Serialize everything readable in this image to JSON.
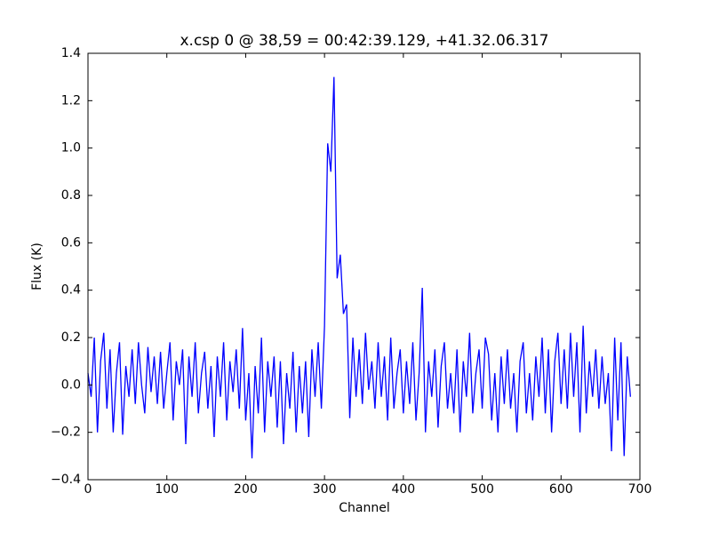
{
  "chart_data": {
    "type": "line",
    "title": "x.csp 0 @ 38,59 = 00:42:39.129, +41.32.06.317",
    "xlabel": "Channel",
    "ylabel": "Flux (K)",
    "x": [
      0,
      4,
      8,
      12,
      16,
      20,
      24,
      28,
      32,
      36,
      40,
      44,
      48,
      52,
      56,
      60,
      64,
      68,
      72,
      76,
      80,
      84,
      88,
      92,
      96,
      100,
      104,
      108,
      112,
      116,
      120,
      124,
      128,
      132,
      136,
      140,
      144,
      148,
      152,
      156,
      160,
      164,
      168,
      172,
      176,
      180,
      184,
      188,
      192,
      196,
      200,
      204,
      208,
      212,
      216,
      220,
      224,
      228,
      232,
      236,
      240,
      244,
      248,
      252,
      256,
      260,
      264,
      268,
      272,
      276,
      280,
      284,
      288,
      292,
      296,
      300,
      304,
      308,
      312,
      316,
      320,
      324,
      328,
      332,
      336,
      340,
      344,
      348,
      352,
      356,
      360,
      364,
      368,
      372,
      376,
      380,
      384,
      388,
      392,
      396,
      400,
      404,
      408,
      412,
      416,
      420,
      424,
      428,
      432,
      436,
      440,
      444,
      448,
      452,
      456,
      460,
      464,
      468,
      472,
      476,
      480,
      484,
      488,
      492,
      496,
      500,
      504,
      508,
      512,
      516,
      520,
      524,
      528,
      532,
      536,
      540,
      544,
      548,
      552,
      556,
      560,
      564,
      568,
      572,
      576,
      580,
      584,
      588,
      592,
      596,
      600,
      604,
      608,
      612,
      616,
      620,
      624,
      628,
      632,
      636,
      640,
      644,
      648,
      652,
      656,
      660,
      664,
      668,
      672,
      676,
      680,
      684,
      688
    ],
    "series": [
      {
        "name": "x.csp 0",
        "color": "#0000ff",
        "values": [
          0.05,
          -0.05,
          0.2,
          -0.2,
          0.1,
          0.22,
          -0.1,
          0.15,
          -0.2,
          0.05,
          0.18,
          -0.21,
          0.08,
          -0.05,
          0.15,
          -0.08,
          0.18,
          0.0,
          -0.12,
          0.16,
          -0.03,
          0.12,
          -0.08,
          0.14,
          -0.1,
          0.05,
          0.18,
          -0.15,
          0.1,
          0.0,
          0.15,
          -0.25,
          0.12,
          -0.05,
          0.18,
          -0.12,
          0.05,
          0.14,
          -0.1,
          0.08,
          -0.22,
          0.12,
          -0.05,
          0.18,
          -0.15,
          0.1,
          -0.03,
          0.15,
          -0.1,
          0.24,
          -0.15,
          0.05,
          -0.31,
          0.08,
          -0.12,
          0.2,
          -0.2,
          0.1,
          -0.05,
          0.12,
          -0.18,
          0.1,
          -0.25,
          0.05,
          -0.1,
          0.14,
          -0.2,
          0.08,
          -0.12,
          0.1,
          -0.22,
          0.15,
          -0.05,
          0.18,
          -0.1,
          0.25,
          1.02,
          0.9,
          1.3,
          0.45,
          0.55,
          0.3,
          0.34,
          -0.14,
          0.2,
          -0.05,
          0.15,
          -0.08,
          0.22,
          -0.02,
          0.1,
          -0.1,
          0.18,
          -0.05,
          0.12,
          -0.15,
          0.2,
          -0.1,
          0.05,
          0.15,
          -0.12,
          0.1,
          -0.08,
          0.18,
          -0.15,
          0.05,
          0.41,
          -0.2,
          0.1,
          -0.05,
          0.15,
          -0.18,
          0.08,
          0.18,
          -0.1,
          0.05,
          -0.12,
          0.15,
          -0.2,
          0.1,
          -0.05,
          0.22,
          -0.12,
          0.05,
          0.15,
          -0.1,
          0.2,
          0.13,
          -0.15,
          0.05,
          -0.2,
          0.12,
          -0.08,
          0.15,
          -0.1,
          0.05,
          -0.2,
          0.1,
          0.18,
          -0.12,
          0.05,
          -0.15,
          0.12,
          -0.05,
          0.2,
          -0.12,
          0.15,
          -0.2,
          0.1,
          0.22,
          -0.08,
          0.15,
          -0.1,
          0.22,
          -0.05,
          0.18,
          -0.2,
          0.25,
          -0.12,
          0.1,
          -0.05,
          0.15,
          -0.1,
          0.12,
          -0.08,
          0.05,
          -0.28,
          0.2,
          -0.15,
          0.18,
          -0.3,
          0.12,
          -0.05
        ]
      }
    ],
    "xlim": [
      0,
      700
    ],
    "xticks": [
      0,
      100,
      200,
      300,
      400,
      500,
      600,
      700
    ],
    "ylim": [
      -0.4,
      1.4
    ],
    "yticks": [
      {
        "value": -0.4,
        "label": "−0.4"
      },
      {
        "value": -0.2,
        "label": "−0.2"
      },
      {
        "value": 0.0,
        "label": "0.0"
      },
      0.2,
      0.4,
      0.6,
      0.8,
      {
        "value": 1.0,
        "label": "1.0"
      },
      1.2,
      1.4
    ],
    "grid": false
  }
}
